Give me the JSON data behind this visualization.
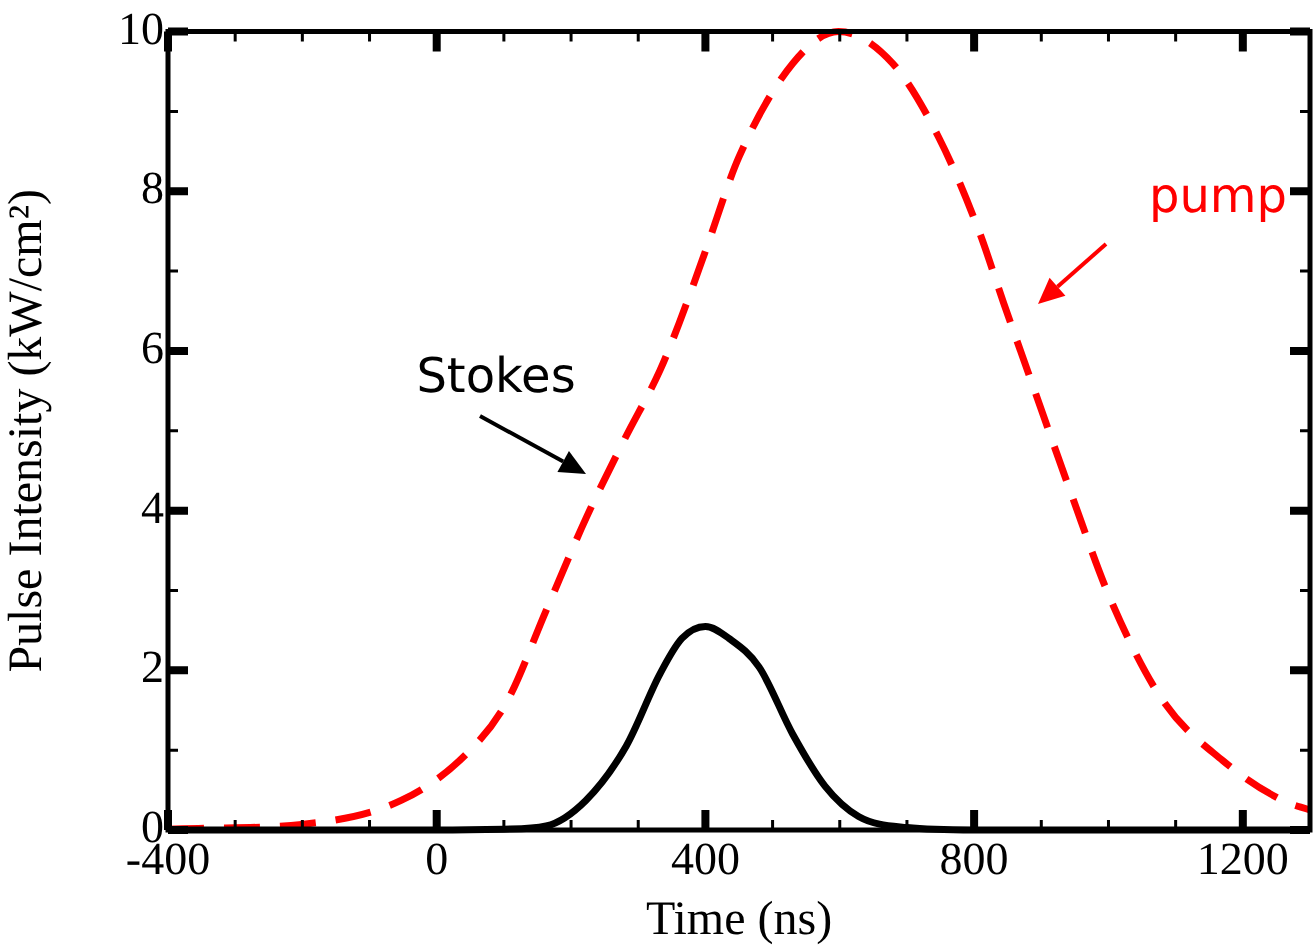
{
  "chart_data": {
    "type": "line",
    "xlabel": "Time (ns)",
    "ylabel": "Pulse Intensity (kW/cm²)",
    "xlim": [
      -400,
      1300
    ],
    "ylim": [
      0,
      10
    ],
    "xticks": [
      -400,
      {
        "value": -300,
        "label": null
      },
      {
        "value": -200,
        "label": null
      },
      {
        "value": -100,
        "label": null
      },
      0,
      {
        "value": 100,
        "label": null
      },
      {
        "value": 200,
        "label": null
      },
      {
        "value": 300,
        "label": null
      },
      400,
      {
        "value": 500,
        "label": null
      },
      {
        "value": 600,
        "label": null
      },
      {
        "value": 700,
        "label": null
      },
      800,
      {
        "value": 900,
        "label": null
      },
      {
        "value": 1000,
        "label": null
      },
      {
        "value": 1100,
        "label": null
      },
      1200
    ],
    "yticks": [
      0,
      {
        "value": 1,
        "label": null
      },
      2,
      {
        "value": 3,
        "label": null
      },
      4,
      {
        "value": 5,
        "label": null
      },
      6,
      {
        "value": 7,
        "label": null
      },
      8,
      {
        "value": 9,
        "label": null
      },
      10
    ],
    "marker": "none",
    "legend": false,
    "grid": false,
    "series": [
      {
        "type": "line",
        "color": "#000000",
        "line_style": "solid",
        "x": [
          -400,
          0,
          100,
          163,
          222,
          282,
          332,
          365,
          400,
          435,
          480,
          530,
          578,
          628,
          700,
          800,
          1000,
          1300
        ],
        "values": [
          0,
          0,
          0.01,
          0.05,
          0.37,
          1.05,
          1.95,
          2.4,
          2.55,
          2.4,
          2.04,
          1.2,
          0.55,
          0.17,
          0.03,
          0,
          0,
          0
        ]
      },
      {
        "type": "line",
        "color": "#ff0000",
        "line_style": "dashed",
        "x": [
          -400,
          -355,
          -201,
          -53,
          44,
          104,
          163,
          222,
          280,
          332,
          361,
          400,
          450,
          530,
          598,
          679,
          747,
          806,
          844,
          886,
          945,
          1004,
          1081,
          1170,
          1259,
          1300
        ],
        "values": [
          0.01,
          0.02,
          0.07,
          0.37,
          0.95,
          1.6,
          2.75,
          3.9,
          4.9,
          5.75,
          6.35,
          7.25,
          8.43,
          9.6,
          10,
          9.6,
          8.68,
          7.53,
          6.6,
          5.6,
          4.2,
          2.87,
          1.62,
          0.87,
          0.37,
          0.25
        ]
      }
    ],
    "annotations": [
      "Stokes",
      "pump"
    ]
  }
}
